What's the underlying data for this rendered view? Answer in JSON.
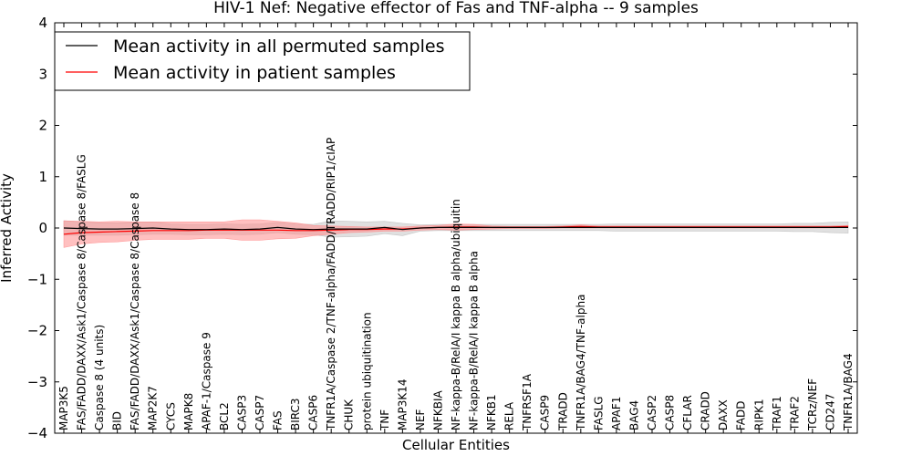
{
  "chart_data": {
    "type": "line",
    "title": "HIV-1 Nef: Negative effector of Fas and TNF-alpha -- 9 samples",
    "xlabel": "Cellular Entities",
    "ylabel": "Inferred Activity",
    "ylim": [
      -4,
      4
    ],
    "yticks": [
      "−4",
      "−3",
      "−2",
      "−1",
      "0",
      "1",
      "2",
      "3",
      "4"
    ],
    "legend_position": "upper-left",
    "categories": [
      "MAP3K5",
      "FAS/FADD/DAXX/Ask1/Caspase 8/Caspase 8/FASLG",
      "Caspase 8 (4 units)",
      "BID",
      "FAS/FADD/DAXX/Ask1/Caspase 8/Caspase 8",
      "MAP2K7",
      "CYCS",
      "MAPK8",
      "APAF-1/Caspase 9",
      "BCL2",
      "CASP3",
      "CASP7",
      "FAS",
      "BIRC3",
      "CASP6",
      "TNFR1A/Caspase 2/TNF-alpha/FADD/TRADD/RIP1/cIAP",
      "CHUK",
      "protein ubiquitination",
      "TNF",
      "MAP3K14",
      "NEF",
      "NFKBIA",
      "NF-kappa-B/RelA/I kappa B alpha/ubiquitin",
      "NF-kappa-B/RelA/I kappa B alpha",
      "NFKB1",
      "RELA",
      "TNFRSF1A",
      "CASP9",
      "TRADD",
      "TNFR1A/BAG4/TNF-alpha",
      "FASLG",
      "APAF1",
      "BAG4",
      "CASP2",
      "CASP8",
      "CFLAR",
      "CRADD",
      "DAXX",
      "FADD",
      "RIPK1",
      "TRAF1",
      "TRAF2",
      "TCRz/NEF",
      "CD247",
      "TNFR1A/BAG4"
    ],
    "series": [
      {
        "name": "Mean activity in all permuted samples",
        "color": "#000000",
        "band_color": "#bbbbbb",
        "values": [
          0.0,
          -0.01,
          -0.02,
          -0.02,
          -0.01,
          0.0,
          -0.02,
          -0.03,
          -0.03,
          -0.02,
          -0.03,
          -0.02,
          0.01,
          -0.02,
          -0.03,
          -0.02,
          -0.02,
          -0.02,
          0.01,
          -0.03,
          0.0,
          0.01,
          0.01,
          0.01,
          0.01,
          0.01,
          0.01,
          0.01,
          0.01,
          0.01,
          0.01,
          0.01,
          0.01,
          0.01,
          0.01,
          0.01,
          0.01,
          0.01,
          0.01,
          0.01,
          0.01,
          0.01,
          0.01,
          0.01,
          0.01
        ],
        "band": [
          0.14,
          0.13,
          0.12,
          0.12,
          0.12,
          0.12,
          0.1,
          0.1,
          0.1,
          0.1,
          0.1,
          0.1,
          0.1,
          0.1,
          0.1,
          0.16,
          0.15,
          0.14,
          0.12,
          0.12,
          0.06,
          0.06,
          0.06,
          0.06,
          0.06,
          0.06,
          0.06,
          0.06,
          0.06,
          0.06,
          0.06,
          0.07,
          0.07,
          0.07,
          0.07,
          0.07,
          0.07,
          0.07,
          0.07,
          0.07,
          0.07,
          0.08,
          0.08,
          0.1,
          0.11
        ]
      },
      {
        "name": "Mean activity in patient samples",
        "color": "#ff0000",
        "band_color": "#ff8c8c",
        "values": [
          -0.12,
          -0.09,
          -0.08,
          -0.07,
          -0.06,
          -0.05,
          -0.05,
          -0.05,
          -0.04,
          -0.04,
          -0.04,
          -0.04,
          -0.04,
          -0.05,
          -0.05,
          -0.04,
          -0.03,
          -0.03,
          -0.02,
          -0.02,
          0.0,
          0.01,
          0.02,
          0.02,
          0.01,
          0.01,
          0.01,
          0.01,
          0.02,
          0.03,
          0.02,
          0.02,
          0.02,
          0.02,
          0.02,
          0.02,
          0.02,
          0.02,
          0.02,
          0.02,
          0.02,
          0.02,
          0.02,
          0.02,
          0.03
        ],
        "band": [
          0.26,
          0.22,
          0.2,
          0.2,
          0.18,
          0.17,
          0.17,
          0.17,
          0.16,
          0.16,
          0.2,
          0.2,
          0.17,
          0.15,
          0.1,
          0.08,
          0.06,
          0.05,
          0.04,
          0.04,
          0.04,
          0.04,
          0.06,
          0.05,
          0.03,
          0.02,
          0.02,
          0.02,
          0.02,
          0.03,
          0.02,
          0.02,
          0.02,
          0.02,
          0.02,
          0.02,
          0.02,
          0.02,
          0.02,
          0.02,
          0.02,
          0.02,
          0.02,
          0.02,
          0.02
        ]
      }
    ]
  }
}
